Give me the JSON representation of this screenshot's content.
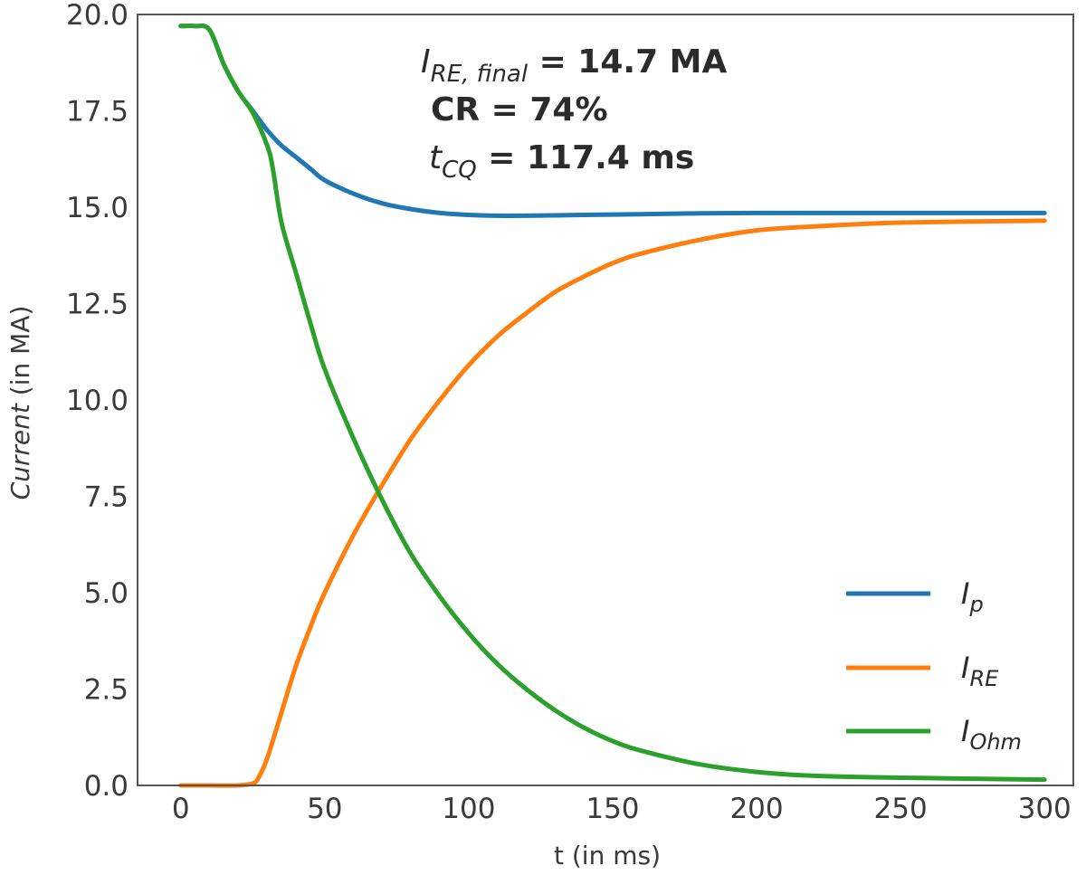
{
  "chart_data": {
    "type": "line",
    "xlabel": "t (in ms)",
    "ylabel_italic": "Current",
    "ylabel_rest": " (in MA)",
    "xlim": [
      -15,
      310
    ],
    "ylim": [
      0,
      20
    ],
    "xticks": [
      0,
      50,
      100,
      150,
      200,
      250,
      300
    ],
    "xtick_labels": [
      "0",
      "50",
      "100",
      "150",
      "200",
      "250",
      "300"
    ],
    "yticks": [
      0,
      2.5,
      5,
      7.5,
      10,
      12.5,
      15,
      17.5,
      20
    ],
    "ytick_labels": [
      "0.0",
      "2.5",
      "5.0",
      "7.5",
      "10.0",
      "12.5",
      "15.0",
      "17.5",
      "20.0"
    ],
    "grid": false,
    "legend_position": "bottom-right",
    "annotations": {
      "ire_main": "I",
      "ire_sub": "RE, final",
      "ire_value": " = 14.7 MA",
      "cr_text": "CR = 74%",
      "tcq_main": "t",
      "tcq_sub": "CQ",
      "tcq_value": " = 117.4 ms"
    },
    "series": [
      {
        "name_main": "I",
        "name_sub": "p",
        "color": "#1f77b4",
        "x": [
          0,
          5,
          10,
          15,
          20,
          25,
          30,
          35,
          40,
          45,
          50,
          60,
          70,
          80,
          90,
          100,
          110,
          120,
          140,
          160,
          180,
          200,
          250,
          300
        ],
        "y": [
          19.7,
          19.7,
          19.6,
          18.7,
          18.0,
          17.5,
          17.0,
          16.6,
          16.3,
          16.0,
          15.7,
          15.35,
          15.1,
          14.95,
          14.85,
          14.8,
          14.78,
          14.78,
          14.8,
          14.82,
          14.84,
          14.85,
          14.85,
          14.85
        ]
      },
      {
        "name_main": "I",
        "name_sub": "RE",
        "color": "#ff7f0e",
        "x": [
          0,
          10,
          20,
          25,
          27,
          30,
          35,
          40,
          45,
          50,
          60,
          70,
          80,
          90,
          100,
          110,
          120,
          130,
          140,
          150,
          160,
          180,
          200,
          220,
          250,
          300
        ],
        "y": [
          0,
          0,
          0,
          0.05,
          0.2,
          0.7,
          1.9,
          3.1,
          4.1,
          5.0,
          6.5,
          7.8,
          9.0,
          10.0,
          10.9,
          11.65,
          12.25,
          12.8,
          13.2,
          13.55,
          13.8,
          14.15,
          14.4,
          14.5,
          14.6,
          14.65
        ]
      },
      {
        "name_main": "I",
        "name_sub": "Ohm",
        "color": "#2ca02c",
        "x": [
          0,
          5,
          10,
          15,
          20,
          25,
          30,
          32,
          35,
          40,
          45,
          50,
          60,
          70,
          80,
          90,
          100,
          110,
          120,
          130,
          140,
          150,
          160,
          180,
          200,
          220,
          250,
          300
        ],
        "y": [
          19.7,
          19.7,
          19.6,
          18.7,
          18.0,
          17.45,
          16.6,
          16.0,
          14.6,
          13.3,
          12.0,
          10.8,
          9.0,
          7.4,
          6.0,
          4.9,
          3.95,
          3.15,
          2.5,
          1.95,
          1.5,
          1.15,
          0.9,
          0.55,
          0.35,
          0.25,
          0.2,
          0.15
        ]
      }
    ]
  }
}
